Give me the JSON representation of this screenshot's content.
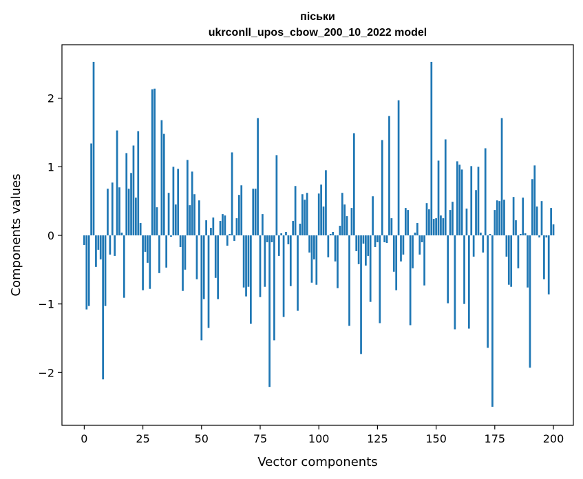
{
  "chart_data": {
    "type": "bar",
    "title": "піськи",
    "subtitle": "ukrconll_upos_cbow_200_10_2022 model",
    "xlabel": "Vector components",
    "ylabel": "Components values",
    "xlim": [
      -9.5,
      208.5
    ],
    "ylim": [
      -2.77,
      2.78
    ],
    "xticks": [
      0,
      25,
      50,
      75,
      100,
      125,
      150,
      175,
      200
    ],
    "yticks": [
      -2,
      -1,
      0,
      1,
      2
    ],
    "ytick_labels": [
      "−2",
      "−1",
      "0",
      "1",
      "2"
    ],
    "bar_color": "#1f77b4",
    "grid": false,
    "values": [
      -0.14,
      -1.08,
      -1.03,
      1.34,
      2.53,
      -0.46,
      -0.21,
      -0.35,
      -2.1,
      -1.03,
      0.68,
      -0.28,
      0.77,
      -0.3,
      1.53,
      0.7,
      0.04,
      -0.91,
      1.2,
      0.68,
      0.91,
      1.31,
      0.55,
      1.52,
      0.18,
      -0.8,
      -0.24,
      -0.4,
      -0.78,
      2.13,
      2.14,
      0.41,
      -0.55,
      1.68,
      1.48,
      -0.47,
      0.62,
      -0.02,
      1.0,
      0.45,
      0.97,
      -0.17,
      -0.81,
      -0.5,
      1.1,
      0.44,
      0.93,
      0.6,
      -0.64,
      0.51,
      -1.53,
      -0.93,
      0.22,
      -1.35,
      0.11,
      0.26,
      -0.62,
      -0.93,
      0.21,
      0.31,
      0.29,
      -0.15,
      0.02,
      1.21,
      -0.08,
      0.25,
      0.59,
      0.73,
      -0.76,
      -0.89,
      -0.75,
      -1.29,
      0.68,
      0.68,
      1.71,
      -0.9,
      0.31,
      -0.75,
      -0.1,
      -2.21,
      -0.1,
      -1.53,
      1.17,
      -0.3,
      0.03,
      -1.19,
      0.05,
      -0.13,
      -0.74,
      0.21,
      0.72,
      -1.1,
      0.17,
      0.6,
      0.52,
      0.62,
      -0.25,
      -0.69,
      -0.35,
      -0.72,
      0.61,
      0.74,
      0.42,
      0.95,
      -0.32,
      0.02,
      0.05,
      -0.38,
      -0.77,
      0.14,
      0.62,
      0.45,
      0.28,
      -1.32,
      0.4,
      1.49,
      -0.23,
      -0.42,
      -1.73,
      -0.12,
      -0.44,
      -0.3,
      -0.97,
      0.57,
      -0.17,
      -0.1,
      -1.28,
      1.39,
      -0.1,
      -0.11,
      1.74,
      0.25,
      -0.53,
      -0.8,
      1.97,
      -0.38,
      -0.28,
      0.4,
      0.37,
      -1.31,
      -0.48,
      0.04,
      0.18,
      -0.28,
      -0.1,
      -0.73,
      0.47,
      0.38,
      2.53,
      0.24,
      0.25,
      1.09,
      0.29,
      0.25,
      1.4,
      -0.99,
      0.37,
      0.49,
      -1.37,
      1.08,
      1.03,
      0.96,
      -1.0,
      0.39,
      -1.36,
      1.01,
      -0.31,
      0.66,
      1.0,
      0.04,
      -0.25,
      1.27,
      -1.64,
      0.02,
      -2.5,
      0.37,
      0.51,
      0.5,
      1.71,
      0.52,
      -0.31,
      -0.72,
      -0.75,
      0.56,
      0.22,
      -0.48,
      0.02,
      0.55,
      0.03,
      -0.76,
      -1.93,
      0.82,
      1.02,
      0.42,
      -0.03,
      0.5,
      -0.64,
      -0.03,
      -0.86,
      0.4,
      0.16
    ]
  }
}
